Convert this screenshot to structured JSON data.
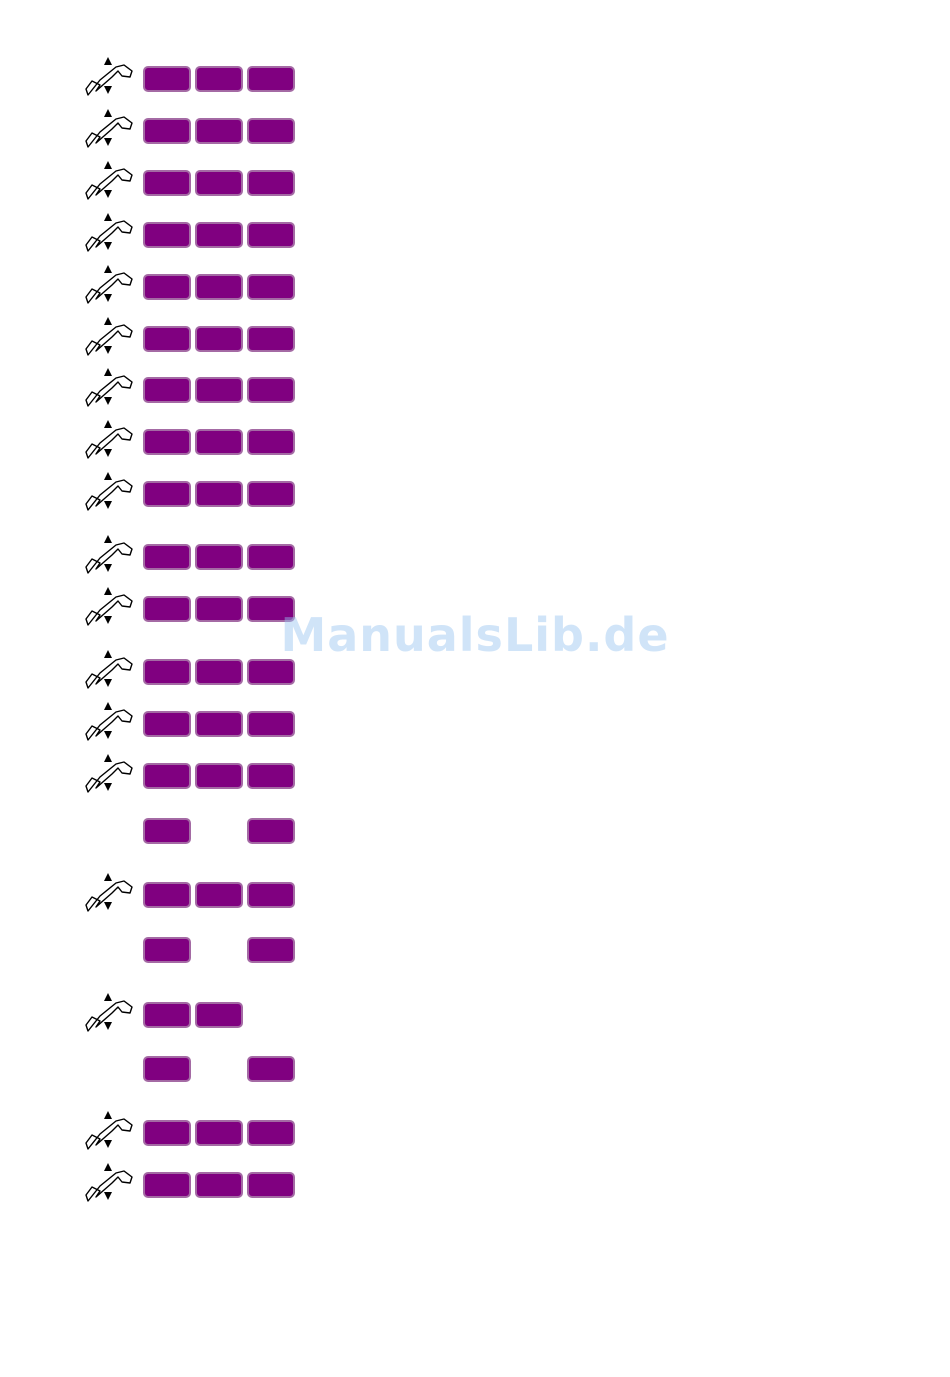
{
  "watermark": "ManualsLib.de"
}
